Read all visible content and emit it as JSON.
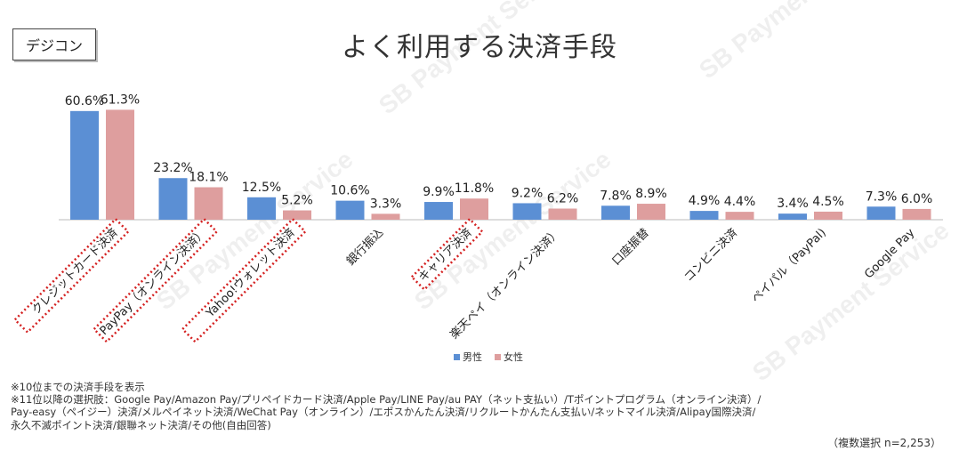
{
  "brand": "デジコン",
  "title": "よく利用する決済手段",
  "watermark": "SB Payment Service",
  "colors": {
    "male": "#5b8fd4",
    "female": "#de9e9e",
    "highlight": "#d42020"
  },
  "legend": [
    {
      "label": "男性",
      "color": "#5b8fd4"
    },
    {
      "label": "女性",
      "color": "#de9e9e"
    }
  ],
  "chart_data": {
    "type": "bar",
    "title": "よく利用する決済手段",
    "categories": [
      "クレジットカード決済",
      "PayPay（オンライン決済）",
      "Yahoo!ウォレット決済",
      "銀行振込",
      "キャリア決済",
      "楽天ペイ（オンライン決済）",
      "口座振替",
      "コンビニ決済",
      "ペイパル（PayPal)",
      "Google Pay"
    ],
    "series": [
      {
        "name": "男性",
        "values": [
          60.6,
          23.2,
          12.5,
          10.6,
          9.9,
          9.2,
          7.8,
          4.9,
          3.4,
          7.3
        ],
        "labels": [
          "60.6%",
          "23.2%",
          "12.5%",
          "10.6%",
          "9.9%",
          "9.2%",
          "7.8%",
          "4.9%",
          "3.4%",
          "7.3%"
        ]
      },
      {
        "name": "女性",
        "values": [
          61.3,
          18.1,
          5.2,
          3.3,
          11.8,
          6.2,
          8.9,
          4.4,
          4.5,
          6.0
        ],
        "labels": [
          "61.3%",
          "18.1%",
          "5.2%",
          "3.3%",
          "11.8%",
          "6.2%",
          "8.9%",
          "4.4%",
          "4.5%",
          "6.0%"
        ]
      }
    ],
    "highlighted_categories": [
      "クレジットカード決済",
      "PayPay（オンライン決済）",
      "Yahoo!ウォレット決済",
      "キャリア決済"
    ],
    "ylim": [
      0,
      65
    ],
    "grid": false,
    "legend_position": "bottom-center"
  },
  "notes": [
    "※10位までの決済手段を表示",
    "※11位以降の選択肢：Google Pay/Amazon Pay/プリペイドカード決済/Apple Pay/LINE Pay/au PAY（ネット支払い）/Tポイントプログラム（オンライン決済）/",
    "Pay-easy（ペイジー）決済/メルペイネット決済/WeChat Pay（オンライン）/エポスかんたん決済/リクルートかんたん支払い/ネットマイル決済/Alipay国際決済/",
    "永久不滅ポイント決済/銀聯ネット決済/その他(自由回答)"
  ],
  "sample_note": "（複数選択 n=2,253）"
}
